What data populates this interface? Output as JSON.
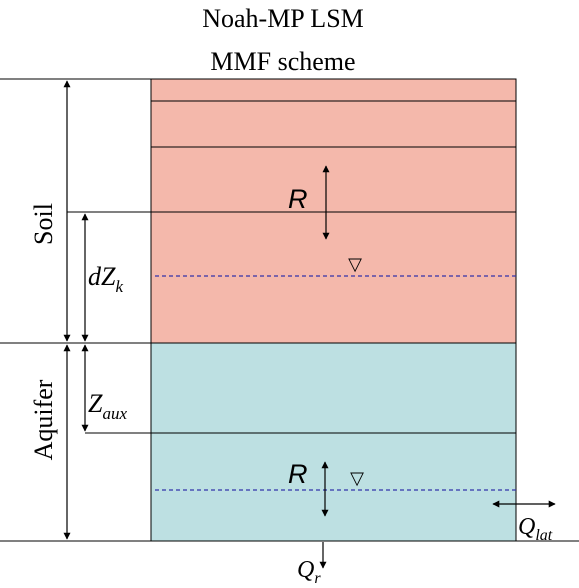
{
  "title": {
    "line1": "Noah-MP LSM",
    "line2": "MMF scheme"
  },
  "colors": {
    "soil": "#f4b8ab",
    "aquifer": "#bde0e2",
    "water_table": "#3333aa",
    "line": "#000000"
  },
  "layers": {
    "soil_label": "Soil",
    "aquifer_label": "Aquifer"
  },
  "symbols": {
    "soil_recharge": "R",
    "aquifer_recharge": "R",
    "layer_thickness_base": "dZ",
    "layer_thickness_sub": "k",
    "aux_depth_base": "Z",
    "aux_depth_sub": "aux",
    "lateral_flow_base": "Q",
    "lateral_flow_sub": "lat",
    "river_flow_base": "Q",
    "river_flow_sub": "r",
    "water_table_marker": "▽"
  }
}
